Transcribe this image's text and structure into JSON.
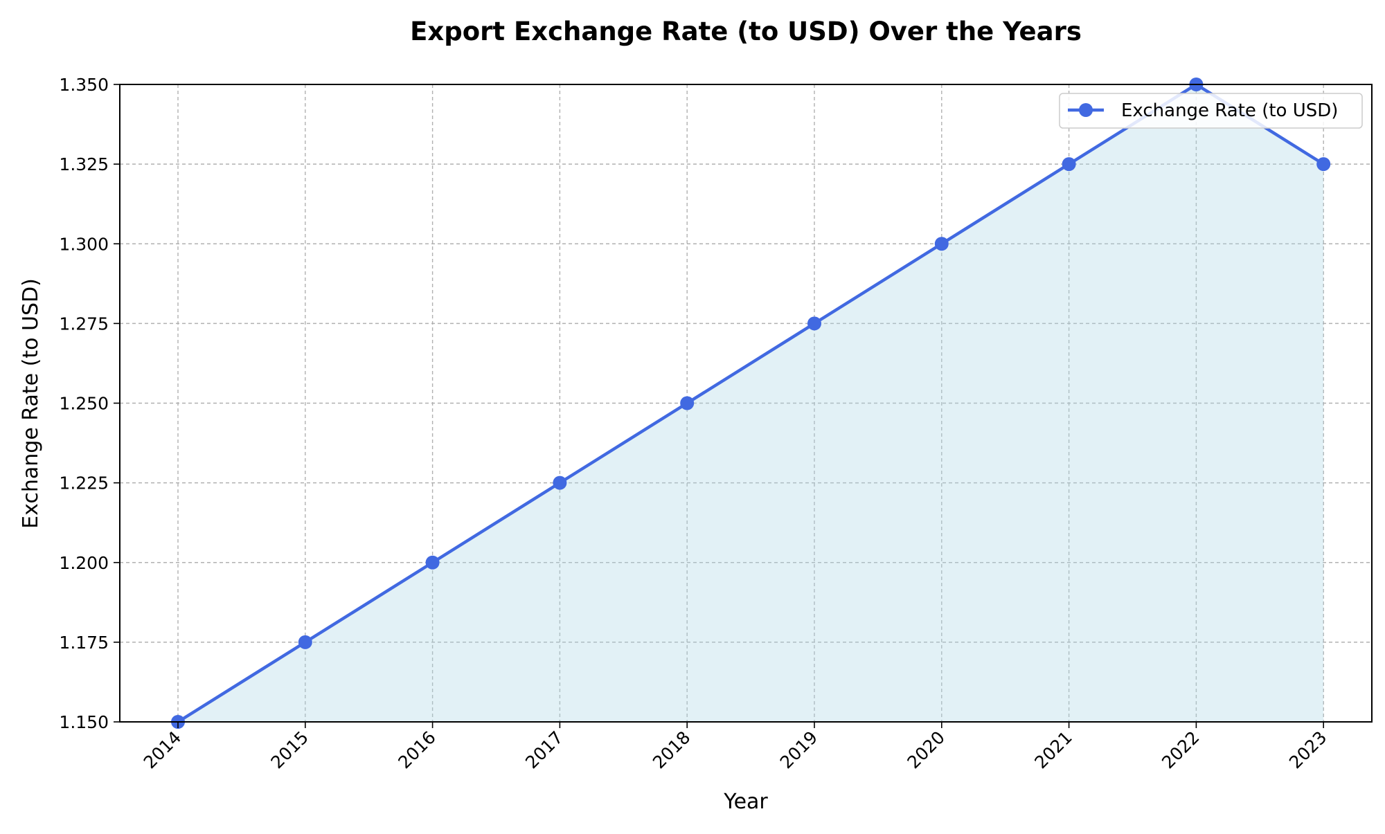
{
  "chart_data": {
    "type": "line",
    "title": "Export Exchange Rate (to USD) Over the Years",
    "xlabel": "Year",
    "ylabel": "Exchange Rate (to USD)",
    "x": [
      "2014",
      "2015",
      "2016",
      "2017",
      "2018",
      "2019",
      "2020",
      "2021",
      "2022",
      "2023"
    ],
    "series": [
      {
        "name": "Exchange Rate (to USD)",
        "values": [
          1.15,
          1.175,
          1.2,
          1.225,
          1.25,
          1.275,
          1.3,
          1.325,
          1.35,
          1.325
        ],
        "color": "#4169e1",
        "fill_color": "#add8e6",
        "marker": "circle"
      }
    ],
    "ylim": [
      1.15,
      1.35
    ],
    "yticks": [
      "1.150",
      "1.175",
      "1.200",
      "1.225",
      "1.250",
      "1.275",
      "1.300",
      "1.325",
      "1.350"
    ],
    "grid": true,
    "legend_position": "top-right",
    "xtick_rotation_degrees": 45
  }
}
